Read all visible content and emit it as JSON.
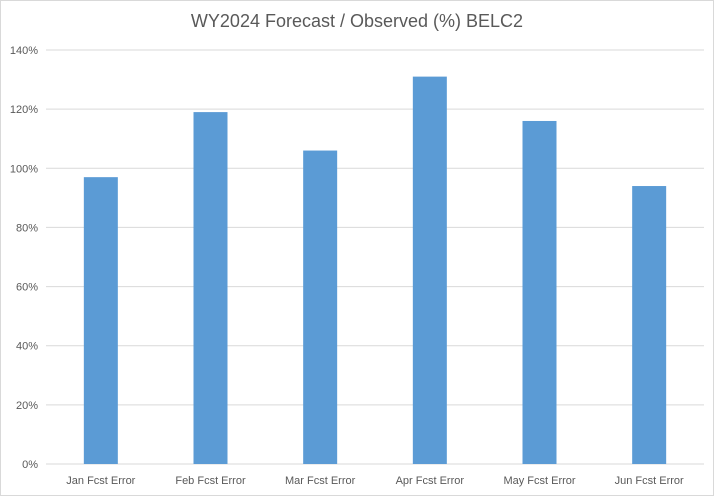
{
  "chart_data": {
    "type": "bar",
    "title": "WY2024 Forecast / Observed (%) BELC2",
    "categories": [
      "Jan Fcst Error",
      "Feb Fcst Error",
      "Mar Fcst Error",
      "Apr Fcst Error",
      "May Fcst Error",
      "Jun Fcst Error"
    ],
    "values": [
      97,
      119,
      106,
      131,
      116,
      94
    ],
    "value_unit": "%",
    "ylim": [
      0,
      140
    ],
    "yticks": [
      "0%",
      "20%",
      "40%",
      "60%",
      "80%",
      "100%",
      "120%",
      "140%"
    ],
    "ytick_values": [
      0,
      20,
      40,
      60,
      80,
      100,
      120,
      140
    ],
    "grid": true,
    "bar_color": "#5b9bd5",
    "grid_color": "#d9d9d9",
    "text_color": "#595959"
  }
}
